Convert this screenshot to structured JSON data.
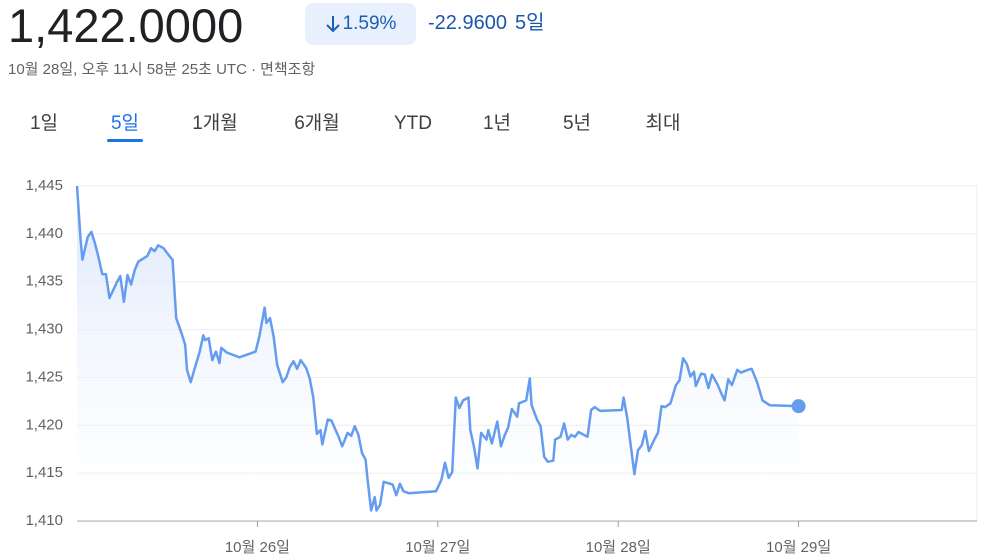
{
  "quote": {
    "price": "1,422.0000",
    "change_percent": "1.59%",
    "change": "-22.9600",
    "change_period": "5일",
    "timestamp": "10월 28일, 오후 11시 58분 25초 UTC ·",
    "disclaimer": "면책조항"
  },
  "tabs": [
    "1일",
    "5일",
    "1개월",
    "6개월",
    "YTD",
    "1년",
    "5년",
    "최대"
  ],
  "selected_tab": 1,
  "chart_data": {
    "type": "line",
    "color": "#659cef",
    "grid": true,
    "xlim": [
      25,
      30
    ],
    "ylim": [
      1410,
      1445
    ],
    "xticks": [
      {
        "value": 26,
        "label": "10월 26일"
      },
      {
        "value": 27,
        "label": "10월 27일"
      },
      {
        "value": 28,
        "label": "10월 28일"
      },
      {
        "value": 29,
        "label": "10월 29일"
      }
    ],
    "yticks": [
      {
        "value": 1410,
        "label": "1,410"
      },
      {
        "value": 1415,
        "label": "1,415"
      },
      {
        "value": 1420,
        "label": "1,420"
      },
      {
        "value": 1425,
        "label": "1,425"
      },
      {
        "value": 1430,
        "label": "1,430"
      },
      {
        "value": 1435,
        "label": "1,435"
      },
      {
        "value": 1440,
        "label": "1,440"
      },
      {
        "value": 1445,
        "label": "1,445"
      }
    ],
    "x": [
      25.0,
      25.02,
      25.03,
      25.06,
      25.08,
      25.1,
      25.12,
      25.14,
      25.16,
      25.18,
      25.22,
      25.24,
      25.26,
      25.28,
      25.3,
      25.32,
      25.34,
      25.39,
      25.41,
      25.43,
      25.45,
      25.48,
      25.5,
      25.52,
      25.53,
      25.55,
      25.58,
      25.6,
      25.61,
      25.63,
      25.65,
      25.68,
      25.7,
      25.71,
      25.73,
      25.75,
      25.77,
      25.79,
      25.8,
      25.83,
      25.9,
      25.99,
      26.01,
      26.04,
      26.05,
      26.07,
      26.09,
      26.11,
      26.14,
      26.16,
      26.18,
      26.2,
      26.22,
      26.24,
      26.27,
      26.29,
      26.31,
      26.33,
      26.35,
      26.36,
      26.39,
      26.41,
      26.45,
      26.47,
      26.5,
      26.52,
      26.54,
      26.56,
      26.58,
      26.6,
      26.61,
      26.63,
      26.65,
      26.66,
      26.68,
      26.7,
      26.75,
      26.77,
      26.79,
      26.81,
      26.84,
      26.99,
      27.02,
      27.04,
      27.06,
      27.08,
      27.1,
      27.12,
      27.14,
      27.17,
      27.18,
      27.2,
      27.22,
      27.24,
      27.27,
      27.28,
      27.3,
      27.33,
      27.35,
      27.37,
      27.39,
      27.41,
      27.44,
      27.45,
      27.49,
      27.51,
      27.52,
      27.55,
      27.57,
      27.59,
      27.61,
      27.64,
      27.65,
      27.68,
      27.7,
      27.72,
      27.74,
      27.76,
      27.78,
      27.83,
      27.85,
      27.87,
      27.9,
      28.02,
      28.03,
      28.05,
      28.09,
      28.11,
      28.13,
      28.15,
      28.17,
      28.2,
      28.22,
      28.24,
      28.26,
      28.29,
      28.32,
      28.34,
      28.36,
      28.38,
      28.4,
      28.42,
      28.43,
      28.46,
      28.48,
      28.5,
      28.52,
      28.55,
      28.57,
      28.59,
      28.61,
      28.63,
      28.66,
      28.68,
      28.72,
      28.74,
      28.77,
      28.8,
      28.84,
      29.0
    ],
    "values": [
      1445.0,
      1439.4,
      1437.3,
      1439.7,
      1440.2,
      1439.0,
      1437.5,
      1435.8,
      1435.8,
      1433.3,
      1434.9,
      1435.6,
      1432.9,
      1435.7,
      1434.7,
      1436.2,
      1437.1,
      1437.7,
      1438.5,
      1438.2,
      1438.8,
      1438.5,
      1438.0,
      1437.5,
      1437.3,
      1431.2,
      1429.6,
      1428.4,
      1425.8,
      1424.5,
      1425.8,
      1427.7,
      1429.4,
      1428.9,
      1429.1,
      1426.8,
      1427.7,
      1426.5,
      1428.1,
      1427.6,
      1427.1,
      1427.7,
      1429.2,
      1432.3,
      1430.7,
      1431.2,
      1429.3,
      1426.3,
      1424.5,
      1425.0,
      1426.1,
      1426.7,
      1425.9,
      1426.8,
      1426.0,
      1424.9,
      1422.9,
      1419.1,
      1419.5,
      1418.0,
      1420.6,
      1420.5,
      1418.8,
      1417.8,
      1419.2,
      1418.9,
      1419.9,
      1419.0,
      1417.1,
      1416.4,
      1414.5,
      1411.1,
      1412.5,
      1411.1,
      1411.7,
      1414.1,
      1413.8,
      1412.7,
      1413.9,
      1413.1,
      1412.9,
      1413.1,
      1414.3,
      1416.1,
      1414.5,
      1415.1,
      1422.9,
      1421.8,
      1422.6,
      1422.9,
      1419.5,
      1417.8,
      1415.5,
      1419.2,
      1418.5,
      1419.5,
      1418.1,
      1420.4,
      1417.8,
      1418.9,
      1419.8,
      1421.7,
      1420.9,
      1422.3,
      1422.6,
      1424.9,
      1422.1,
      1420.6,
      1419.9,
      1416.7,
      1416.2,
      1416.3,
      1418.5,
      1418.8,
      1420.2,
      1418.5,
      1419.0,
      1418.8,
      1419.3,
      1418.8,
      1421.6,
      1421.9,
      1421.5,
      1421.6,
      1422.9,
      1420.8,
      1414.9,
      1417.4,
      1417.9,
      1419.4,
      1417.3,
      1418.5,
      1419.2,
      1422.0,
      1421.9,
      1422.3,
      1424.2,
      1424.7,
      1427.0,
      1426.4,
      1425.1,
      1425.6,
      1424.1,
      1425.4,
      1425.3,
      1423.9,
      1425.3,
      1424.3,
      1423.4,
      1422.6,
      1424.8,
      1424.2,
      1425.8,
      1425.5,
      1425.8,
      1425.9,
      1424.5,
      1422.6,
      1422.1,
      1422.0
    ]
  }
}
